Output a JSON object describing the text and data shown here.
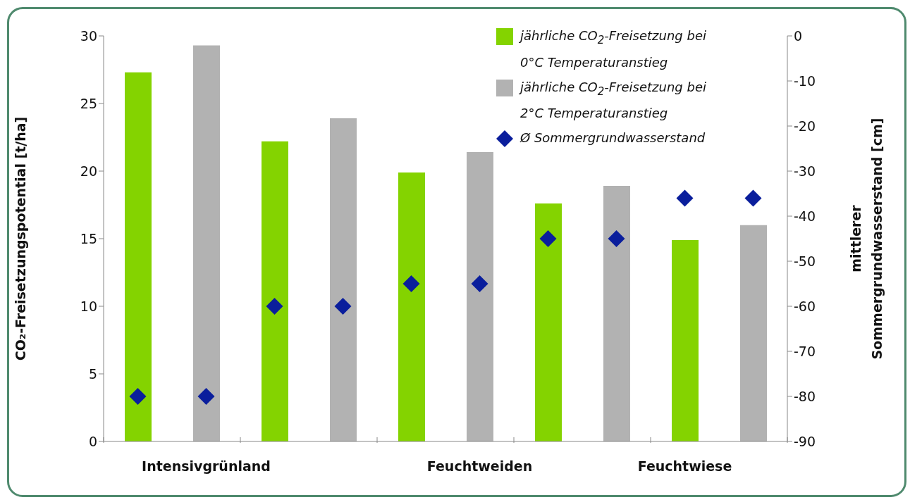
{
  "chart_data": {
    "type": "bar",
    "ylabel": "CO₂-Freisetzungspotential [t/ha]",
    "y2label": "mittlerer\nSommergrundwasserstand [cm]",
    "categories": [
      null,
      "Intensivgrünland",
      null,
      null,
      null,
      "Feuchtweiden",
      null,
      null,
      "Feuchtwiese",
      null
    ],
    "ylim": [
      0,
      30
    ],
    "yticks": [
      0,
      5,
      10,
      15,
      20,
      25,
      30
    ],
    "y2lim": [
      -90,
      0
    ],
    "y2ticks": [
      -90,
      -80,
      -70,
      -60,
      -50,
      -40,
      -30,
      -20,
      -10,
      0
    ],
    "grid": false,
    "legend": "top right",
    "series": [
      {
        "name": "jährliche CO$_{2}$-Freisetzung bei 0°C Temperaturanstieg",
        "color": "#84d300",
        "values": [
          27.3,
          null,
          22.2,
          null,
          19.9,
          null,
          17.6,
          null,
          14.9,
          null
        ]
      },
      {
        "name": "jährliche CO$_{2}$-Freisetzung bei 2°C Temperaturanstieg",
        "color": "#b2b2b2",
        "values": [
          null,
          29.3,
          null,
          23.9,
          null,
          21.4,
          null,
          18.9,
          null,
          16.0
        ]
      },
      {
        "name": "Ø Sommergrundwasserstand",
        "type": "scatter",
        "axis": "y2",
        "marker": "diamond",
        "color": "#0a1e9c",
        "values": [
          -80,
          -80,
          -60,
          -60,
          -55,
          -55,
          -45,
          -45,
          -36,
          -36
        ]
      }
    ]
  }
}
